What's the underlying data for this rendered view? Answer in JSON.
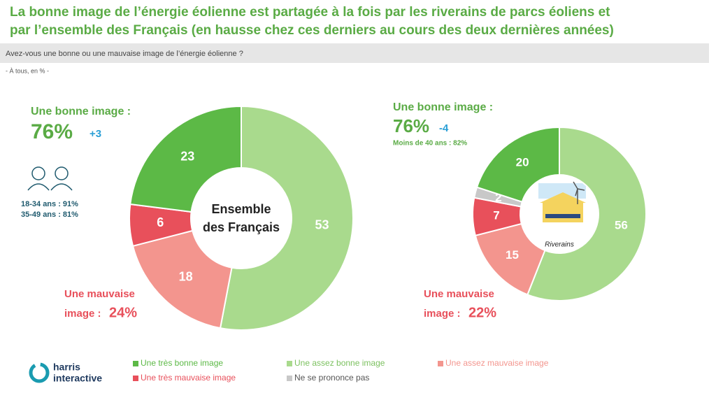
{
  "header": {
    "title_lines": [
      "La bonne image de l’énergie éolienne est partagée à la fois par les riverains de parcs éoliens et",
      "par l’ensemble des Français (en hausse chez ces derniers au cours des deux dernières années)"
    ],
    "question": "Avez-vous une bonne ou une mauvaise image de l’énergie éolienne ?",
    "base": "- À tous, en % -"
  },
  "legend": [
    {
      "name": "Une très bonne image",
      "color": "#5cb946"
    },
    {
      "name": "Une assez bonne image",
      "color": "#a9da8d"
    },
    {
      "name": "Une assez mauvaise image",
      "color": "#f3958e"
    },
    {
      "name": "Une très mauvaise image",
      "color": "#e8505b"
    },
    {
      "name": "Ne se prononce pas",
      "color": "#c8c8c8"
    }
  ],
  "chart_data": [
    {
      "type": "donut",
      "center_lines": [
        "Ensemble",
        "des Français"
      ],
      "values": [
        53,
        18,
        6,
        23
      ],
      "colors": [
        "#a9da8d",
        "#f3958e",
        "#e8505b",
        "#5cb946"
      ],
      "annotations": {
        "good_label": "Une bonne image :",
        "good_value": "76%",
        "good_change": "+3",
        "details": [
          "18-34 ans : 91%",
          "35-49 ans : 81%"
        ],
        "bad_label_1": "Une mauvaise",
        "bad_label_2": "image :",
        "bad_value": "24%"
      }
    },
    {
      "type": "donut",
      "center_lines": [
        "Riverains"
      ],
      "values": [
        56,
        15,
        7,
        2,
        20
      ],
      "colors": [
        "#a9da8d",
        "#f3958e",
        "#e8505b",
        "#c8c8c8",
        "#5cb946"
      ],
      "annotations": {
        "good_label": "Une bonne image :",
        "good_value": "76%",
        "good_change": "-4",
        "details": [
          "Moins de 40 ans : 82%"
        ],
        "bad_label_1": "Une mauvaise",
        "bad_label_2": "image :",
        "bad_value": "22%"
      }
    }
  ],
  "footer": {
    "logo_lines": [
      "harris",
      "interactive"
    ]
  }
}
